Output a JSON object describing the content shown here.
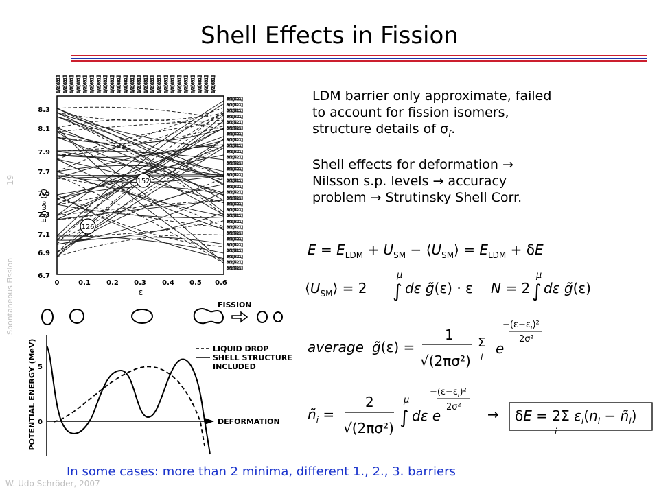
{
  "slide": {
    "title": "Shell Effects in Fission",
    "page_number": "19",
    "section_label": "Spontaneous Fission",
    "author": "W. Udo Schröder, 2007",
    "footer": "In some cases: more than 2 minima, different 1., 2., 3. barriers",
    "colors": {
      "rule_red": "#cc1f2e",
      "rule_blue": "#2233aa",
      "footer_text": "#1a33cc",
      "side_text": "#c0c0c0"
    }
  },
  "bullets": [
    {
      "lines": [
        "LDM barrier only approximate, failed",
        "to account for fission isomers,",
        "structure details of σ",
        "f",
        "."
      ]
    },
    {
      "lines": [
        "Shell effects for deformation → ",
        "Nilsson s.p. levels → accuracy",
        "problem → Strutinsky Shell Corr."
      ]
    }
  ],
  "nilsson_diagram": {
    "y_axis_label": "E/ħω₀ (ε)",
    "x_axis_label": "ε",
    "y_ticks": [
      "8.3",
      "8.1",
      "7.9",
      "7.7",
      "7.5",
      "7.3",
      "7.1",
      "6.9",
      "6.7"
    ],
    "x_ticks": [
      "0",
      "0.1",
      "0.2",
      "0.3",
      "0.4",
      "0.5",
      "0.6"
    ],
    "circled_labels": [
      "152",
      "126"
    ]
  },
  "shapes_row": {
    "arrow_label": "FISSION"
  },
  "energy_plot": {
    "y_axis_label": "POTENTIAL ENERGY (MeV)",
    "y_ticks": [
      "5",
      "0"
    ],
    "x_axis_label": "DEFORMATION",
    "legend": [
      {
        "label_lines": [
          "LIQUID DROP"
        ],
        "style": "dashed"
      },
      {
        "label_lines": [
          "SHELL STRUCTURE",
          "INCLUDED"
        ],
        "style": "solid"
      }
    ]
  },
  "equations": {
    "eq1": "E = E_LDM + U_SM − ⟨U_SM⟩ = E_LDM + δE",
    "eq2a": "⟨U_SM⟩ = 2∫^μ dε g̃(ε)·ε",
    "eq2b": "N = 2∫^μ dε g̃(ε)",
    "eq3": "average g̃(ε) = 1/√(2πσ²) Σ_i e^(−(ε−ε_i)²/2σ²)",
    "eq4a": "ñ_i = 2/√(2πσ²) ∫^μ dε e^(−(ε−ε_i)²/2σ²)",
    "eq4b": "δE = 2Σ_i ε_i (n_i − ñ_i)"
  }
}
